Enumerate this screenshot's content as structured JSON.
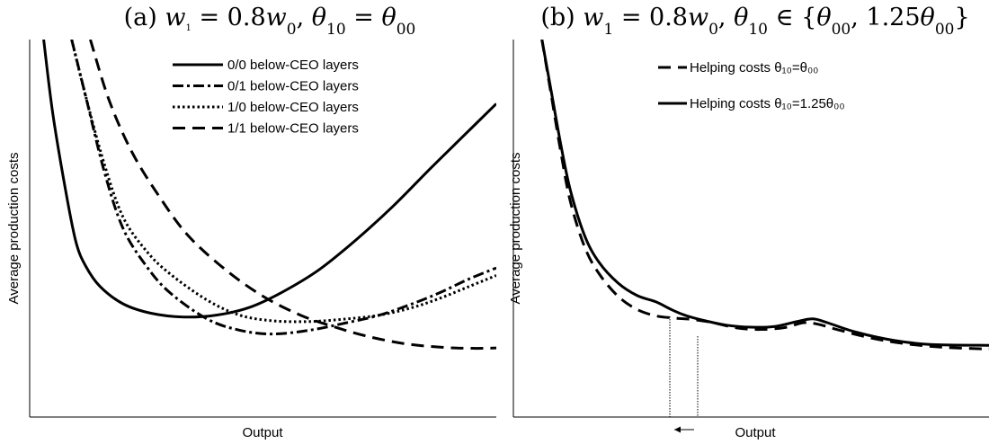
{
  "chart_data": [
    {
      "type": "line",
      "title": "(a) w₁ = 0.8w₀, θ₁₀ = θ₀₀",
      "xlabel": "Output",
      "ylabel": "Average production costs",
      "xlim": [
        0,
        1
      ],
      "ylim": [
        0,
        1
      ],
      "grid": false,
      "legend_position": "top-right",
      "series": [
        {
          "name": "0/0 below-CEO layers",
          "style": "solid",
          "points": [
            [
              0.03,
              1.0
            ],
            [
              0.05,
              0.8
            ],
            [
              0.08,
              0.58
            ],
            [
              0.1,
              0.46
            ],
            [
              0.12,
              0.4
            ],
            [
              0.15,
              0.347
            ],
            [
              0.2,
              0.3
            ],
            [
              0.26,
              0.275
            ],
            [
              0.33,
              0.265
            ],
            [
              0.4,
              0.27
            ],
            [
              0.47,
              0.29
            ],
            [
              0.54,
              0.33
            ],
            [
              0.62,
              0.39
            ],
            [
              0.7,
              0.47
            ],
            [
              0.78,
              0.56
            ],
            [
              0.86,
              0.66
            ],
            [
              0.93,
              0.745
            ],
            [
              1.0,
              0.83
            ]
          ]
        },
        {
          "name": "0/1 below-CEO layers",
          "style": "dashdot",
          "points": [
            [
              0.09,
              1.0
            ],
            [
              0.12,
              0.85
            ],
            [
              0.16,
              0.65
            ],
            [
              0.2,
              0.5
            ],
            [
              0.25,
              0.4
            ],
            [
              0.3,
              0.33
            ],
            [
              0.38,
              0.26
            ],
            [
              0.45,
              0.23
            ],
            [
              0.52,
              0.22
            ],
            [
              0.6,
              0.23
            ],
            [
              0.68,
              0.25
            ],
            [
              0.75,
              0.27
            ],
            [
              0.82,
              0.3
            ],
            [
              0.88,
              0.33
            ],
            [
              0.94,
              0.365
            ],
            [
              1.0,
              0.395
            ]
          ]
        },
        {
          "name": "1/0 below-CEO layers",
          "style": "dotted",
          "points": [
            [
              0.09,
              1.0
            ],
            [
              0.12,
              0.85
            ],
            [
              0.16,
              0.67
            ],
            [
              0.2,
              0.53
            ],
            [
              0.25,
              0.44
            ],
            [
              0.3,
              0.38
            ],
            [
              0.38,
              0.31
            ],
            [
              0.45,
              0.27
            ],
            [
              0.52,
              0.255
            ],
            [
              0.6,
              0.253
            ],
            [
              0.68,
              0.26
            ],
            [
              0.75,
              0.27
            ],
            [
              0.82,
              0.29
            ],
            [
              0.88,
              0.315
            ],
            [
              0.94,
              0.345
            ],
            [
              1.0,
              0.375
            ]
          ]
        },
        {
          "name": "1/1 below-CEO layers",
          "style": "dashed",
          "points": [
            [
              0.13,
              1.0
            ],
            [
              0.17,
              0.84
            ],
            [
              0.22,
              0.7
            ],
            [
              0.28,
              0.58
            ],
            [
              0.34,
              0.48
            ],
            [
              0.42,
              0.39
            ],
            [
              0.5,
              0.32
            ],
            [
              0.58,
              0.27
            ],
            [
              0.65,
              0.24
            ],
            [
              0.72,
              0.215
            ],
            [
              0.8,
              0.195
            ],
            [
              0.88,
              0.185
            ],
            [
              0.95,
              0.182
            ],
            [
              1.0,
              0.183
            ]
          ]
        }
      ]
    },
    {
      "type": "line",
      "title": "(b) w₁ = 0.8w₀, θ₁₀ ∈ {θ₀₀, 1.25θ₀₀}",
      "xlabel": "Output",
      "ylabel": "Average production costs",
      "xlim": [
        0,
        1
      ],
      "ylim": [
        0,
        1
      ],
      "grid": false,
      "legend_position": "top-center",
      "series": [
        {
          "name": "Helping costs θ₁₀=θ₀₀",
          "style": "dashed",
          "points": [
            [
              0.06,
              1.0
            ],
            [
              0.08,
              0.85
            ],
            [
              0.1,
              0.7
            ],
            [
              0.12,
              0.57
            ],
            [
              0.15,
              0.45
            ],
            [
              0.18,
              0.38
            ],
            [
              0.22,
              0.32
            ],
            [
              0.26,
              0.285
            ],
            [
              0.3,
              0.268
            ],
            [
              0.34,
              0.262
            ],
            [
              0.38,
              0.258
            ],
            [
              0.42,
              0.25
            ],
            [
              0.47,
              0.236
            ],
            [
              0.52,
              0.232
            ],
            [
              0.57,
              0.237
            ],
            [
              0.61,
              0.25
            ],
            [
              0.64,
              0.246
            ],
            [
              0.68,
              0.232
            ],
            [
              0.75,
              0.21
            ],
            [
              0.82,
              0.195
            ],
            [
              0.9,
              0.185
            ],
            [
              1.0,
              0.18
            ]
          ]
        },
        {
          "name": "Helping costs θ₁₀=1.25θ₀₀",
          "style": "solid",
          "points": [
            [
              0.06,
              1.0
            ],
            [
              0.08,
              0.86
            ],
            [
              0.1,
              0.72
            ],
            [
              0.12,
              0.6
            ],
            [
              0.15,
              0.48
            ],
            [
              0.18,
              0.41
            ],
            [
              0.22,
              0.355
            ],
            [
              0.26,
              0.322
            ],
            [
              0.3,
              0.305
            ],
            [
              0.33,
              0.286
            ],
            [
              0.36,
              0.27
            ],
            [
              0.4,
              0.256
            ],
            [
              0.45,
              0.243
            ],
            [
              0.5,
              0.238
            ],
            [
              0.55,
              0.24
            ],
            [
              0.6,
              0.254
            ],
            [
              0.63,
              0.26
            ],
            [
              0.66,
              0.25
            ],
            [
              0.72,
              0.225
            ],
            [
              0.8,
              0.203
            ],
            [
              0.88,
              0.192
            ],
            [
              1.0,
              0.19
            ]
          ]
        }
      ]
    }
  ]
}
